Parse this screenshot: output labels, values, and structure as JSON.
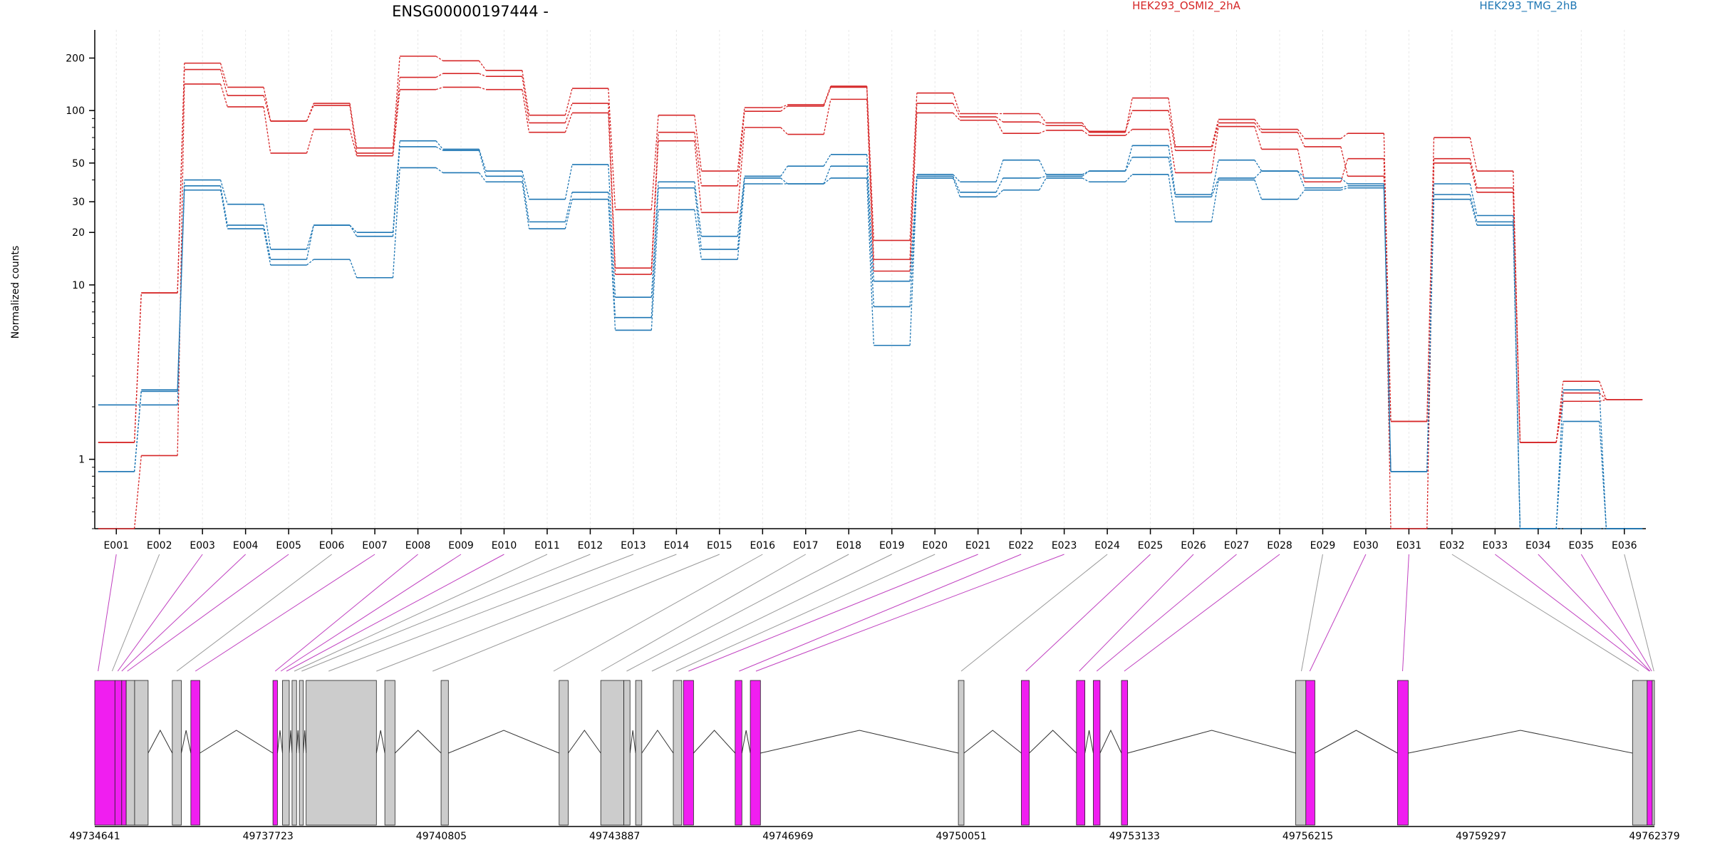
{
  "colors": {
    "sample_a": "#d62728",
    "sample_b": "#1f77b4",
    "exon_tested": "#f01ef0",
    "exon_other": "#cccccc",
    "grid": "#e8e8e8"
  },
  "chart_data": {
    "type": "line",
    "title": "ENSG00000197444 -",
    "ylabel": "Normalized counts",
    "yscale": "log",
    "ylim": [
      0.4,
      290
    ],
    "yticks": [
      1,
      10,
      20,
      30,
      50,
      100,
      200
    ],
    "legend": [
      {
        "name": "HEK293_OSMI2_2hA",
        "color": "#d62728"
      },
      {
        "name": "HEK293_TMG_2hB",
        "color": "#1f77b4"
      }
    ],
    "categories": [
      "E001",
      "E002",
      "E003",
      "E004",
      "E005",
      "E006",
      "E007",
      "E008",
      "E009",
      "E010",
      "E011",
      "E012",
      "E013",
      "E014",
      "E015",
      "E016",
      "E017",
      "E018",
      "E019",
      "E020",
      "E021",
      "E022",
      "E023",
      "E024",
      "E025",
      "E026",
      "E027",
      "E028",
      "E029",
      "E030",
      "E031",
      "E032",
      "E033",
      "E034",
      "E035",
      "E036"
    ],
    "series": [
      {
        "group": "a",
        "values": [
          0.4,
          1.05,
          142,
          105,
          57,
          78,
          55,
          132,
          136,
          132,
          75,
          97,
          11.5,
          67,
          26,
          80,
          73,
          116,
          12,
          97,
          88,
          74,
          77,
          72,
          78,
          44,
          81,
          60,
          39,
          53,
          0.4,
          50,
          34,
          1.25,
          2.4,
          2.2
        ]
      },
      {
        "group": "a",
        "values": [
          1.25,
          9,
          172,
          122,
          87,
          107,
          57,
          155,
          163,
          157,
          85,
          110,
          12.5,
          75,
          37,
          99,
          106,
          136,
          14,
          110,
          92,
          86,
          82,
          76,
          100,
          59,
          85,
          75,
          62,
          42,
          1.65,
          53,
          36,
          1.25,
          2.15,
          2.2
        ]
      },
      {
        "group": "a",
        "values": [
          1.25,
          9,
          187,
          136,
          87,
          110,
          61,
          205,
          193,
          170,
          94,
          134,
          27,
          94,
          45,
          104,
          108,
          138,
          18,
          126,
          96,
          96,
          85,
          75,
          118,
          62,
          89,
          78,
          69,
          74,
          1.65,
          70,
          45,
          1.25,
          2.8,
          2.2
        ]
      },
      {
        "group": "b",
        "values": [
          0.85,
          2.45,
          35,
          21,
          13,
          14,
          11,
          47,
          44,
          39,
          21,
          31,
          5.5,
          27,
          14,
          38,
          38,
          41,
          4.5,
          41,
          32,
          35,
          41,
          39,
          43,
          23,
          40,
          31,
          35,
          36,
          0.85,
          31,
          22,
          0.4,
          1.65,
          0.4
        ]
      },
      {
        "group": "b",
        "values": [
          0.85,
          2.5,
          37,
          22,
          14,
          22,
          19,
          62,
          59,
          42,
          23,
          34,
          6.5,
          36,
          16,
          41,
          38,
          48,
          7.5,
          42,
          34,
          41,
          42,
          45,
          54,
          32,
          41,
          45,
          36,
          37,
          0.85,
          33,
          23,
          0.4,
          0.4,
          0.4
        ]
      },
      {
        "group": "b",
        "values": [
          2.05,
          2.05,
          40,
          29,
          16,
          22,
          20,
          67,
          60,
          45,
          31,
          49,
          8.5,
          39,
          19,
          42,
          48,
          56,
          10.5,
          43,
          39,
          52,
          43,
          45,
          63,
          33,
          52,
          45,
          41,
          38,
          0.85,
          38,
          25,
          0.4,
          2.5,
          0.4
        ]
      }
    ],
    "gene_model": {
      "coordinates": [
        "49734641",
        "49737723",
        "49740805",
        "49743887",
        "49746969",
        "49750051",
        "49753133",
        "49756215",
        "49759297",
        "49762379"
      ],
      "range": [
        49734641,
        49762379
      ],
      "exons": [
        {
          "start": 49734641,
          "end": 49735000,
          "tested": true
        },
        {
          "start": 49735000,
          "end": 49735120,
          "tested": true
        },
        {
          "start": 49735120,
          "end": 49735200,
          "tested": true
        },
        {
          "start": 49735200,
          "end": 49735350,
          "tested": false
        },
        {
          "start": 49735350,
          "end": 49735590,
          "tested": false
        },
        {
          "start": 49736020,
          "end": 49736180,
          "tested": false
        },
        {
          "start": 49736350,
          "end": 49736510,
          "tested": true
        },
        {
          "start": 49737810,
          "end": 49737890,
          "tested": true
        },
        {
          "start": 49737980,
          "end": 49738100,
          "tested": false
        },
        {
          "start": 49738150,
          "end": 49738230,
          "tested": false
        },
        {
          "start": 49738280,
          "end": 49738350,
          "tested": false
        },
        {
          "start": 49738400,
          "end": 49739650,
          "tested": false
        },
        {
          "start": 49739800,
          "end": 49739980,
          "tested": false
        },
        {
          "start": 49740800,
          "end": 49740930,
          "tested": false
        },
        {
          "start": 49742900,
          "end": 49743060,
          "tested": false
        },
        {
          "start": 49743640,
          "end": 49744050,
          "tested": false
        },
        {
          "start": 49744050,
          "end": 49744160,
          "tested": false
        },
        {
          "start": 49744260,
          "end": 49744370,
          "tested": false
        },
        {
          "start": 49744930,
          "end": 49745080,
          "tested": false
        },
        {
          "start": 49745110,
          "end": 49745290,
          "tested": true
        },
        {
          "start": 49746030,
          "end": 49746150,
          "tested": true
        },
        {
          "start": 49746300,
          "end": 49746480,
          "tested": true
        },
        {
          "start": 49750000,
          "end": 49750100,
          "tested": false
        },
        {
          "start": 49751120,
          "end": 49751260,
          "tested": true
        },
        {
          "start": 49752100,
          "end": 49752250,
          "tested": true
        },
        {
          "start": 49752400,
          "end": 49752520,
          "tested": true
        },
        {
          "start": 49752900,
          "end": 49753010,
          "tested": true
        },
        {
          "start": 49756000,
          "end": 49756180,
          "tested": false
        },
        {
          "start": 49756180,
          "end": 49756340,
          "tested": true
        },
        {
          "start": 49757810,
          "end": 49758000,
          "tested": true
        },
        {
          "start": 49761990,
          "end": 49762250,
          "tested": false
        },
        {
          "start": 49762250,
          "end": 49762340,
          "tested": true
        },
        {
          "start": 49762340,
          "end": 49762379,
          "tested": false
        }
      ],
      "mapping": [
        {
          "label": "E001",
          "pos": 49734700,
          "tested": true
        },
        {
          "label": "E002",
          "pos": 49734950,
          "tested": false
        },
        {
          "label": "E003",
          "pos": 49735050,
          "tested": true
        },
        {
          "label": "E004",
          "pos": 49735120,
          "tested": true
        },
        {
          "label": "E005",
          "pos": 49735220,
          "tested": true
        },
        {
          "label": "E006",
          "pos": 49736100,
          "tested": false
        },
        {
          "label": "E007",
          "pos": 49736430,
          "tested": true
        },
        {
          "label": "E008",
          "pos": 49737850,
          "tested": true
        },
        {
          "label": "E009",
          "pos": 49737950,
          "tested": true
        },
        {
          "label": "E010",
          "pos": 49738050,
          "tested": true
        },
        {
          "label": "E011",
          "pos": 49738190,
          "tested": false
        },
        {
          "label": "E012",
          "pos": 49738320,
          "tested": false
        },
        {
          "label": "E013",
          "pos": 49738800,
          "tested": false
        },
        {
          "label": "E014",
          "pos": 49739650,
          "tested": false
        },
        {
          "label": "E015",
          "pos": 49740650,
          "tested": false
        },
        {
          "label": "E016",
          "pos": 49742800,
          "tested": false
        },
        {
          "label": "E017",
          "pos": 49743650,
          "tested": false
        },
        {
          "label": "E018",
          "pos": 49744100,
          "tested": false
        },
        {
          "label": "E019",
          "pos": 49744550,
          "tested": false
        },
        {
          "label": "E020",
          "pos": 49744980,
          "tested": false
        },
        {
          "label": "E021",
          "pos": 49745200,
          "tested": true
        },
        {
          "label": "E022",
          "pos": 49746100,
          "tested": true
        },
        {
          "label": "E023",
          "pos": 49746400,
          "tested": true
        },
        {
          "label": "E024",
          "pos": 49750050,
          "tested": false
        },
        {
          "label": "E025",
          "pos": 49751200,
          "tested": true
        },
        {
          "label": "E026",
          "pos": 49752150,
          "tested": true
        },
        {
          "label": "E027",
          "pos": 49752460,
          "tested": true
        },
        {
          "label": "E028",
          "pos": 49752950,
          "tested": true
        },
        {
          "label": "E029",
          "pos": 49756100,
          "tested": false
        },
        {
          "label": "E030",
          "pos": 49756250,
          "tested": true
        },
        {
          "label": "E031",
          "pos": 49757900,
          "tested": true
        },
        {
          "label": "E032",
          "pos": 49762100,
          "tested": false
        },
        {
          "label": "E033",
          "pos": 49762290,
          "tested": true
        },
        {
          "label": "E034",
          "pos": 49762300,
          "tested": true
        },
        {
          "label": "E035",
          "pos": 49762330,
          "tested": true
        },
        {
          "label": "E036",
          "pos": 49762370,
          "tested": false
        }
      ]
    }
  }
}
